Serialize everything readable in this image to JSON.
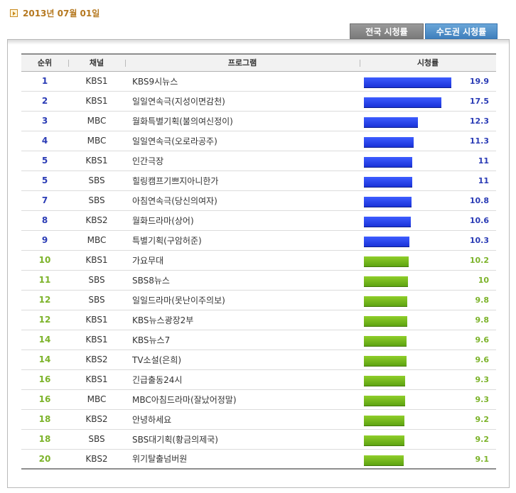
{
  "header": {
    "date": "2013년 07월 01일",
    "icon": "arrow-right-icon"
  },
  "tabs": [
    {
      "label": "전국 시청률",
      "active": false
    },
    {
      "label": "수도권 시청률",
      "active": true
    }
  ],
  "table": {
    "columns": [
      "순위",
      "채널",
      "프로그램",
      "시청률"
    ],
    "max_rating": 20,
    "colors": {
      "top": "#2a3bd6",
      "rest": "#72b81e"
    },
    "rows": [
      {
        "rank": "1",
        "channel": "KBS1",
        "program": "KBS9시뉴스",
        "rating": "19.9",
        "value": 19.9,
        "tier": "top"
      },
      {
        "rank": "2",
        "channel": "KBS1",
        "program": "일일연속극(지성이면감천)",
        "rating": "17.5",
        "value": 17.5,
        "tier": "top"
      },
      {
        "rank": "3",
        "channel": "MBC",
        "program": "월화특별기획(불의여신정이)",
        "rating": "12.3",
        "value": 12.3,
        "tier": "top"
      },
      {
        "rank": "4",
        "channel": "MBC",
        "program": "일일연속극(오로라공주)",
        "rating": "11.3",
        "value": 11.3,
        "tier": "top"
      },
      {
        "rank": "5",
        "channel": "KBS1",
        "program": "인간극장",
        "rating": "11",
        "value": 11,
        "tier": "top"
      },
      {
        "rank": "5",
        "channel": "SBS",
        "program": "힐링캠프기쁘지아니한가",
        "rating": "11",
        "value": 11,
        "tier": "top"
      },
      {
        "rank": "7",
        "channel": "SBS",
        "program": "아침연속극(당신의여자)",
        "rating": "10.8",
        "value": 10.8,
        "tier": "top"
      },
      {
        "rank": "8",
        "channel": "KBS2",
        "program": "월화드라마(상어)",
        "rating": "10.6",
        "value": 10.6,
        "tier": "top"
      },
      {
        "rank": "9",
        "channel": "MBC",
        "program": "특별기획(구암허준)",
        "rating": "10.3",
        "value": 10.3,
        "tier": "top"
      },
      {
        "rank": "10",
        "channel": "KBS1",
        "program": "가요무대",
        "rating": "10.2",
        "value": 10.2,
        "tier": "rest"
      },
      {
        "rank": "11",
        "channel": "SBS",
        "program": "SBS8뉴스",
        "rating": "10",
        "value": 10,
        "tier": "rest"
      },
      {
        "rank": "12",
        "channel": "SBS",
        "program": "일일드라마(못난이주의보)",
        "rating": "9.8",
        "value": 9.8,
        "tier": "rest"
      },
      {
        "rank": "12",
        "channel": "KBS1",
        "program": "KBS뉴스광장2부",
        "rating": "9.8",
        "value": 9.8,
        "tier": "rest"
      },
      {
        "rank": "14",
        "channel": "KBS1",
        "program": "KBS뉴스7",
        "rating": "9.6",
        "value": 9.6,
        "tier": "rest"
      },
      {
        "rank": "14",
        "channel": "KBS2",
        "program": "TV소설(은희)",
        "rating": "9.6",
        "value": 9.6,
        "tier": "rest"
      },
      {
        "rank": "16",
        "channel": "KBS1",
        "program": "긴급출동24시",
        "rating": "9.3",
        "value": 9.3,
        "tier": "rest"
      },
      {
        "rank": "16",
        "channel": "MBC",
        "program": "MBC아침드라마(잘났어정말)",
        "rating": "9.3",
        "value": 9.3,
        "tier": "rest"
      },
      {
        "rank": "18",
        "channel": "KBS2",
        "program": "안녕하세요",
        "rating": "9.2",
        "value": 9.2,
        "tier": "rest"
      },
      {
        "rank": "18",
        "channel": "SBS",
        "program": "SBS대기획(황금의제국)",
        "rating": "9.2",
        "value": 9.2,
        "tier": "rest"
      },
      {
        "rank": "20",
        "channel": "KBS2",
        "program": "위기탈출넘버원",
        "rating": "9.1",
        "value": 9.1,
        "tier": "rest"
      }
    ]
  }
}
